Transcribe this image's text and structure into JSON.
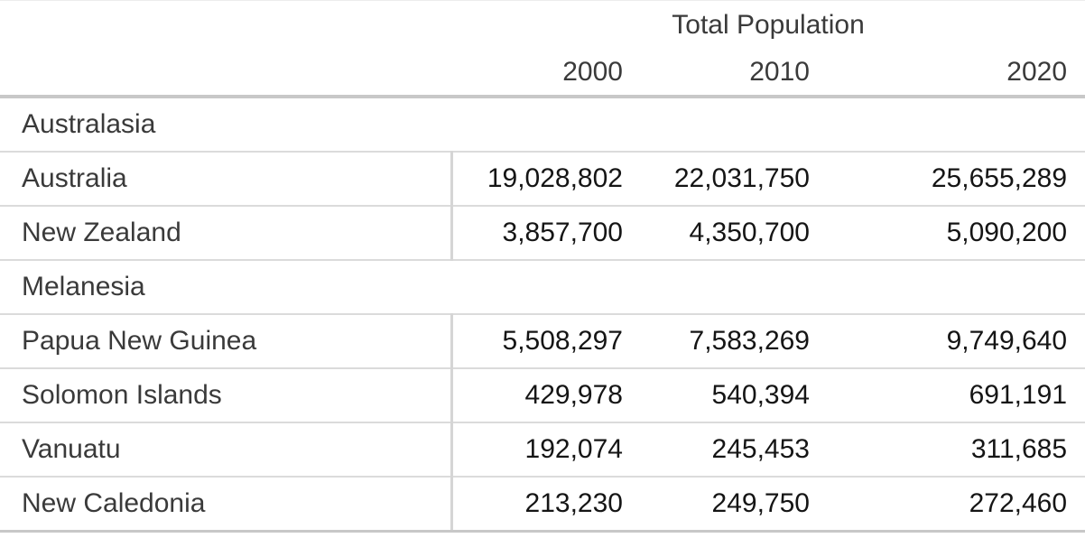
{
  "table": {
    "spanner": "Total Population",
    "year_headers": [
      "2000",
      "2010",
      "2020"
    ],
    "groups": [
      {
        "label": "Australasia",
        "rows": [
          {
            "name": "Australia",
            "values": [
              "19,028,802",
              "22,031,750",
              "25,655,289"
            ]
          },
          {
            "name": "New Zealand",
            "values": [
              "3,857,700",
              "4,350,700",
              "5,090,200"
            ]
          }
        ]
      },
      {
        "label": "Melanesia",
        "rows": [
          {
            "name": "Papua New Guinea",
            "values": [
              "5,508,297",
              "7,583,269",
              "9,749,640"
            ]
          },
          {
            "name": "Solomon Islands",
            "values": [
              "429,978",
              "540,394",
              "691,191"
            ]
          },
          {
            "name": "Vanuatu",
            "values": [
              "192,074",
              "245,453",
              "311,685"
            ]
          },
          {
            "name": "New Caledonia",
            "values": [
              "213,230",
              "249,750",
              "272,460"
            ]
          }
        ]
      }
    ]
  },
  "colors": {
    "label_text": "#3a3a3a",
    "number_text": "#151515",
    "thick_border": "#c8c8c8",
    "row_separator": "#dbdbdb",
    "column_divider": "#d5d5d5",
    "background": "#ffffff"
  },
  "chart_data": {
    "type": "table",
    "title": "Total Population",
    "columns": [
      "",
      "2000",
      "2010",
      "2020"
    ],
    "row_groups": [
      "Australasia",
      "Melanesia"
    ],
    "rows": [
      {
        "group": "Australasia",
        "name": "Australia",
        "values": [
          19028802,
          22031750,
          25655289
        ]
      },
      {
        "group": "Australasia",
        "name": "New Zealand",
        "values": [
          3857700,
          4350700,
          5090200
        ]
      },
      {
        "group": "Melanesia",
        "name": "Papua New Guinea",
        "values": [
          5508297,
          7583269,
          9749640
        ]
      },
      {
        "group": "Melanesia",
        "name": "Solomon Islands",
        "values": [
          429978,
          540394,
          691191
        ]
      },
      {
        "group": "Melanesia",
        "name": "Vanuatu",
        "values": [
          192074,
          245453,
          311685
        ]
      },
      {
        "group": "Melanesia",
        "name": "New Caledonia",
        "values": [
          213230,
          249750,
          272460
        ]
      }
    ],
    "layout": {
      "spanner_spans_columns": [
        "2000",
        "2010",
        "2020"
      ],
      "value_alignment": "right",
      "stub_alignment": "left",
      "grid": "horizontal-rules-with-stub-divider"
    }
  }
}
